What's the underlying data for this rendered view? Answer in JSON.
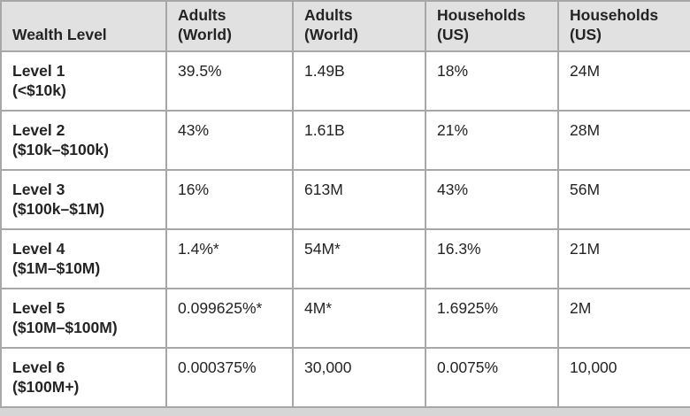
{
  "colors": {
    "header_bg": "#e2e1e1",
    "border": "#a7a7a7",
    "text": "#242424",
    "page_strip": "#d6d6d6",
    "cell_bg": "#ffffff"
  },
  "chart_data": {
    "type": "table",
    "title": "",
    "columns": [
      {
        "line1": "Wealth Level",
        "line2": ""
      },
      {
        "line1": "Adults",
        "line2": "(World)"
      },
      {
        "line1": "Adults",
        "line2": "(World)"
      },
      {
        "line1": "Households",
        "line2": "(US)"
      },
      {
        "line1": "Households",
        "line2": "(US)"
      }
    ],
    "rows": [
      {
        "level": "Level 1",
        "range": "(<$10k)",
        "adults_world_pct": "39.5%",
        "adults_world_count": "1.49B",
        "households_us_pct": "18%",
        "households_us_count": "24M"
      },
      {
        "level": "Level 2",
        "range": "($10k–$100k)",
        "adults_world_pct": "43%",
        "adults_world_count": "1.61B",
        "households_us_pct": "21%",
        "households_us_count": "28M"
      },
      {
        "level": "Level 3",
        "range": "($100k–$1M)",
        "adults_world_pct": "16%",
        "adults_world_count": "613M",
        "households_us_pct": "43%",
        "households_us_count": "56M"
      },
      {
        "level": "Level 4",
        "range": "($1M–$10M)",
        "adults_world_pct": "1.4%*",
        "adults_world_count": "54M*",
        "households_us_pct": "16.3%",
        "households_us_count": "21M"
      },
      {
        "level": "Level 5",
        "range": "($10M–$100M)",
        "adults_world_pct": "0.099625%*",
        "adults_world_count": "4M*",
        "households_us_pct": "1.6925%",
        "households_us_count": "2M"
      },
      {
        "level": "Level 6",
        "range": "($100M+)",
        "adults_world_pct": "0.000375%",
        "adults_world_count": "30,000",
        "households_us_pct": "0.0075%",
        "households_us_count": "10,000"
      }
    ]
  }
}
